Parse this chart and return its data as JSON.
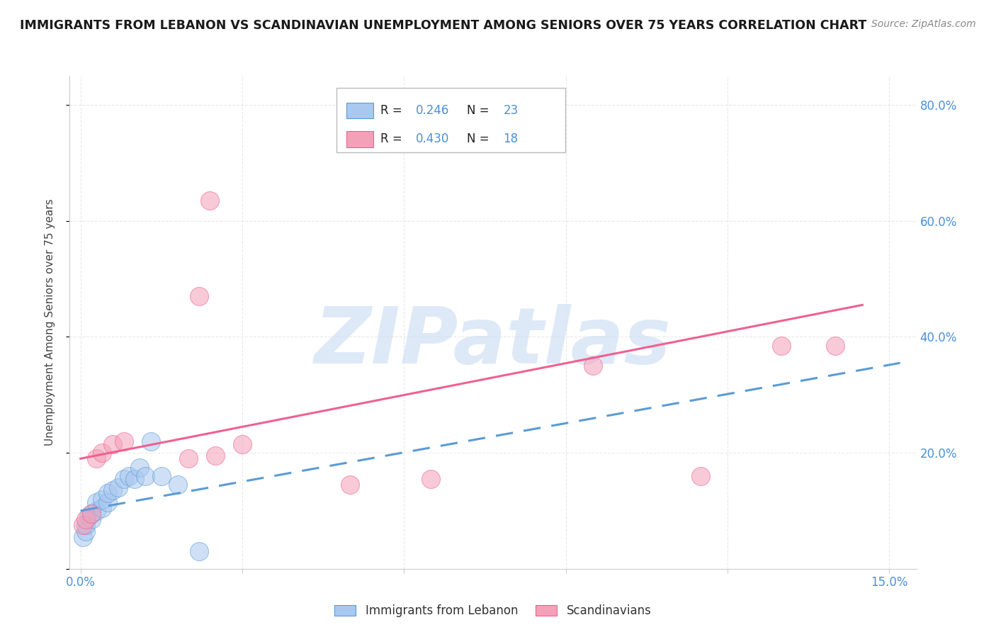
{
  "title": "IMMIGRANTS FROM LEBANON VS SCANDINAVIAN UNEMPLOYMENT AMONG SENIORS OVER 75 YEARS CORRELATION CHART",
  "source": "Source: ZipAtlas.com",
  "ylabel": "Unemployment Among Seniors over 75 years",
  "xlim": [
    -0.002,
    0.155
  ],
  "ylim": [
    0.0,
    0.85
  ],
  "legend_R1": "0.246",
  "legend_N1": "23",
  "legend_R2": "0.430",
  "legend_N2": "18",
  "blue_color": "#A8C8F0",
  "pink_color": "#F4A0B8",
  "trendline_blue_color": "#5B9BD5",
  "trendline_pink_color": "#F06090",
  "watermark": "ZIPatlas",
  "watermark_color": "#D0E0F5",
  "lebanon_x": [
    0.0005,
    0.001,
    0.001,
    0.0015,
    0.002,
    0.002,
    0.003,
    0.003,
    0.004,
    0.004,
    0.005,
    0.005,
    0.006,
    0.007,
    0.008,
    0.009,
    0.01,
    0.011,
    0.012,
    0.013,
    0.015,
    0.018,
    0.022
  ],
  "lebanon_y": [
    0.055,
    0.065,
    0.075,
    0.09,
    0.085,
    0.095,
    0.1,
    0.115,
    0.105,
    0.12,
    0.115,
    0.13,
    0.135,
    0.14,
    0.155,
    0.16,
    0.155,
    0.175,
    0.16,
    0.22,
    0.16,
    0.145,
    0.03
  ],
  "scand_x": [
    0.0005,
    0.001,
    0.002,
    0.003,
    0.004,
    0.006,
    0.008,
    0.02,
    0.022,
    0.024,
    0.025,
    0.03,
    0.05,
    0.065,
    0.095,
    0.115,
    0.13,
    0.14
  ],
  "scand_y": [
    0.075,
    0.085,
    0.095,
    0.19,
    0.2,
    0.215,
    0.22,
    0.19,
    0.47,
    0.635,
    0.195,
    0.215,
    0.145,
    0.155,
    0.35,
    0.16,
    0.385,
    0.385
  ],
  "trendline_blue_x0": 0.0,
  "trendline_blue_x1": 0.152,
  "trendline_blue_y0": 0.1,
  "trendline_blue_y1": 0.355,
  "trendline_pink_x0": 0.0,
  "trendline_pink_x1": 0.145,
  "trendline_pink_y0": 0.19,
  "trendline_pink_y1": 0.455,
  "background_color": "#FFFFFF",
  "grid_color": "#E8E8E8"
}
